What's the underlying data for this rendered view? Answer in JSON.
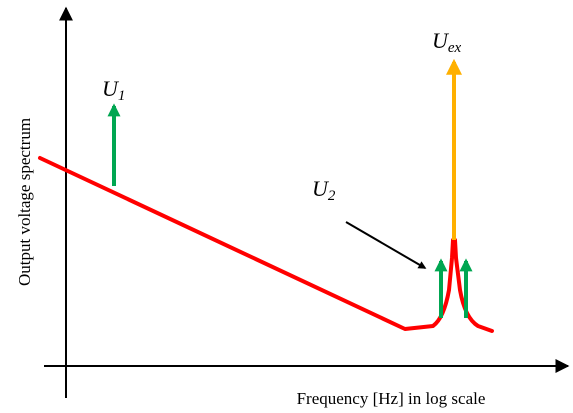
{
  "axes": {
    "x_label": "Frequency [Hz] in log scale",
    "y_label": "Output voltage spectrum"
  },
  "labels": {
    "u1_base": "U",
    "u1_sub": "1",
    "u2_base": "U",
    "u2_sub": "2",
    "uex_base": "U",
    "uex_sub": "ex"
  },
  "colors": {
    "axis": "#000000",
    "noise_curve": "#ff0000",
    "harmonic_arrow": "#00a651",
    "excitation_arrow": "#ffb000",
    "pointer_arrow": "#000000"
  }
}
